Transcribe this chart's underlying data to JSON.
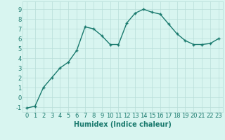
{
  "x": [
    0,
    1,
    2,
    3,
    4,
    5,
    6,
    7,
    8,
    9,
    10,
    11,
    12,
    13,
    14,
    15,
    16,
    17,
    18,
    19,
    20,
    21,
    22,
    23
  ],
  "y": [
    -1.1,
    -0.9,
    1.0,
    2.0,
    3.0,
    3.6,
    4.8,
    7.2,
    7.0,
    6.3,
    5.4,
    5.4,
    7.6,
    8.6,
    9.0,
    8.7,
    8.5,
    7.5,
    6.5,
    5.8,
    5.4,
    5.4,
    5.5,
    6.0
  ],
  "line_color": "#1a7a6e",
  "marker": "+",
  "marker_size": 3,
  "bg_color": "#d8f5f0",
  "grid_color": "#b8ddd8",
  "xlabel": "Humidex (Indice chaleur)",
  "ylim": [
    -1.5,
    9.8
  ],
  "xlim": [
    -0.5,
    23.5
  ],
  "yticks": [
    -1,
    0,
    1,
    2,
    3,
    4,
    5,
    6,
    7,
    8,
    9
  ],
  "xticks": [
    0,
    1,
    2,
    3,
    4,
    5,
    6,
    7,
    8,
    9,
    10,
    11,
    12,
    13,
    14,
    15,
    16,
    17,
    18,
    19,
    20,
    21,
    22,
    23
  ],
  "xlabel_fontsize": 7,
  "tick_fontsize": 6,
  "line_width": 1.0
}
